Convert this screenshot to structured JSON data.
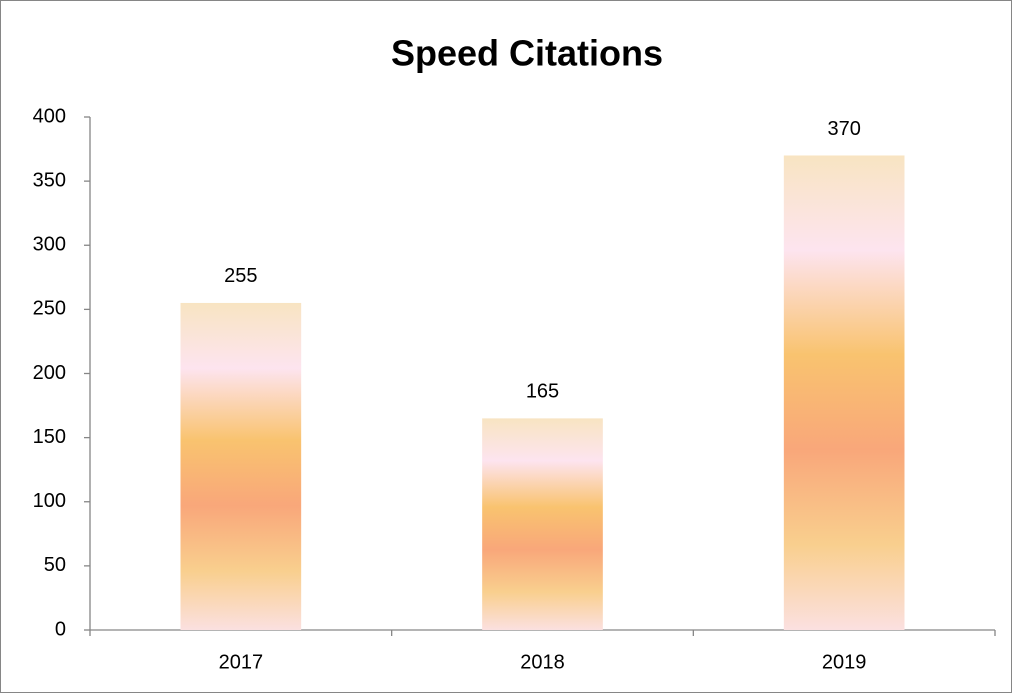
{
  "chart_data": {
    "type": "bar",
    "title": "Speed Citations",
    "categories": [
      "2017",
      "2018",
      "2019"
    ],
    "values": [
      255,
      165,
      370
    ],
    "ylim": [
      0,
      400
    ],
    "yticks": [
      0,
      50,
      100,
      150,
      200,
      250,
      300,
      350,
      400
    ]
  }
}
